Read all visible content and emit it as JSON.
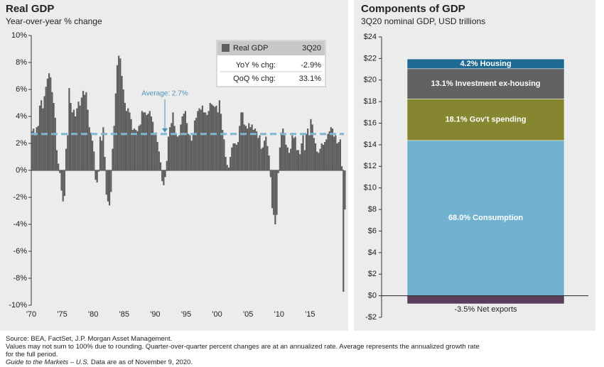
{
  "chart_data": [
    {
      "type": "bar",
      "title": "Real GDP",
      "subtitle": "Year-over-year % change",
      "categories": [
        "'70",
        null,
        null,
        null,
        null,
        null,
        null,
        null,
        null,
        null,
        null,
        null,
        null,
        null,
        null,
        null,
        null,
        null,
        null,
        null,
        "'75",
        null,
        null,
        null,
        null,
        null,
        null,
        null,
        null,
        null,
        null,
        null,
        null,
        null,
        null,
        null,
        null,
        null,
        null,
        null,
        "'80",
        null,
        null,
        null,
        null,
        null,
        null,
        null,
        null,
        null,
        null,
        null,
        null,
        null,
        null,
        null,
        null,
        null,
        null,
        null,
        "'85",
        null,
        null,
        null,
        null,
        null,
        null,
        null,
        null,
        null,
        null,
        null,
        null,
        null,
        null,
        null,
        null,
        null,
        null,
        null,
        "'90",
        null,
        null,
        null,
        null,
        null,
        null,
        null,
        null,
        null,
        null,
        null,
        null,
        null,
        null,
        null,
        null,
        null,
        null,
        null,
        "'95",
        null,
        null,
        null,
        null,
        null,
        null,
        null,
        null,
        null,
        null,
        null,
        null,
        null,
        null,
        null,
        null,
        null,
        null,
        null,
        "'00",
        null,
        null,
        null,
        null,
        null,
        null,
        null,
        null,
        null,
        null,
        null,
        null,
        null,
        null,
        null,
        null,
        null,
        null,
        null,
        "'05",
        null,
        null,
        null,
        null,
        null,
        null,
        null,
        null,
        null,
        null,
        null,
        null,
        null,
        null,
        null,
        null,
        null,
        null,
        null,
        "'10",
        null,
        null,
        null,
        null,
        null,
        null,
        null,
        null,
        null,
        null,
        null,
        null,
        null,
        null,
        null,
        null,
        null,
        null,
        null,
        "'15",
        null,
        null,
        null,
        null,
        null,
        null,
        null,
        null,
        null,
        null,
        null,
        null,
        null,
        null,
        null,
        null,
        null,
        null,
        null,
        null,
        null,
        null
      ],
      "series": [
        {
          "name": "Real GDP",
          "color": "#5e5e5e",
          "values": [
            2.9,
            3.1,
            2.6,
            3.2,
            3.3,
            4.8,
            5.2,
            4.6,
            5.5,
            6.2,
            6.8,
            7.2,
            6.9,
            5.8,
            5.0,
            3.9,
            1.5,
            0.5,
            -0.2,
            -1.5,
            -2.3,
            -1.9,
            1.6,
            2.6,
            6.1,
            5.0,
            4.3,
            4.5,
            4.0,
            4.6,
            5.1,
            4.8,
            5.4,
            5.9,
            5.6,
            5.8,
            4.5,
            3.2,
            2.8,
            2.2,
            1.4,
            -0.7,
            -0.9,
            -0.1,
            2.5,
            2.2,
            3.2,
            1.0,
            -1.8,
            -2.3,
            -2.6,
            -1.6,
            1.6,
            3.3,
            5.7,
            7.8,
            8.5,
            8.3,
            7.0,
            6.0,
            5.0,
            4.4,
            4.6,
            4.3,
            3.8,
            3.0,
            3.1,
            3.0,
            2.9,
            3.3,
            3.4,
            4.4,
            4.3,
            4.3,
            4.1,
            4.2,
            4.4,
            4.0,
            3.6,
            2.7,
            2.8,
            2.1,
            1.4,
            0.6,
            -0.8,
            -1.1,
            -0.5,
            0.7,
            2.5,
            3.2,
            3.5,
            4.3,
            3.3,
            2.7,
            2.5,
            2.6,
            3.4,
            4.0,
            4.2,
            4.4,
            3.5,
            2.7,
            2.6,
            2.2,
            2.7,
            3.7,
            3.9,
            4.4,
            4.6,
            4.5,
            4.8,
            4.3,
            4.3,
            4.1,
            4.4,
            5.0,
            4.9,
            4.8,
            4.7,
            4.8,
            4.3,
            5.2,
            4.2,
            3.0,
            2.3,
            1.0,
            0.4,
            0.2,
            1.0,
            1.7,
            2.0,
            2.0,
            1.9,
            2.1,
            3.3,
            4.3,
            4.3,
            3.4,
            3.3,
            3.1,
            3.5,
            3.2,
            3.4,
            3.0,
            3.1,
            2.9,
            2.4,
            2.6,
            1.6,
            1.7,
            2.2,
            2.5,
            1.8,
            1.1,
            -0.5,
            -2.8,
            -3.3,
            -4.0,
            -3.3,
            -0.2,
            1.7,
            2.8,
            3.1,
            2.6,
            1.9,
            1.7,
            1.3,
            1.6,
            2.6,
            2.4,
            2.5,
            1.5,
            1.5,
            1.2,
            2.0,
            2.6,
            1.5,
            2.7,
            3.1,
            2.6,
            3.8,
            3.4,
            2.4,
            2.0,
            1.4,
            1.3,
            1.6,
            2.0,
            1.9,
            2.1,
            2.3,
            2.7,
            2.9,
            3.2,
            3.1,
            2.5,
            2.6,
            2.0,
            2.1,
            2.3,
            0.3,
            -9.0,
            -2.9
          ]
        }
      ],
      "ylim": [
        -10,
        10
      ],
      "yticks": [
        {
          "value": -10,
          "label": "-10%"
        },
        {
          "value": -8,
          "label": "-8%"
        },
        {
          "value": -6,
          "label": "-6%"
        },
        {
          "value": -4,
          "label": "-4%"
        },
        {
          "value": -2,
          "label": "-2%"
        },
        {
          "value": 0,
          "label": "0%"
        },
        {
          "value": 2,
          "label": "2%"
        },
        {
          "value": 4,
          "label": "4%"
        },
        {
          "value": 6,
          "label": "6%"
        },
        {
          "value": 8,
          "label": "8%"
        },
        {
          "value": 10,
          "label": "10%"
        }
      ],
      "average": 2.7,
      "average_label": "Average: 2.7%",
      "average_color": "#7fb6d6",
      "legend_period": "3Q20",
      "legend_rows": [
        [
          "YoY % chg:",
          "-2.9%"
        ],
        [
          "QoQ % chg:",
          "33.1%"
        ]
      ]
    },
    {
      "type": "stacked_bar",
      "title": "Components of GDP",
      "subtitle": "3Q20 nominal GDP, USD trillions",
      "series": [
        {
          "name": "68.0% Consumption",
          "color": "#70b2cf",
          "values": [
            14.4
          ]
        },
        {
          "name": "18.1% Gov't spending",
          "color": "#868631",
          "values": [
            3.85
          ]
        },
        {
          "name": "13.1% Investment ex-housing",
          "color": "#626262",
          "values": [
            2.8
          ]
        },
        {
          "name": "4.2% Housing",
          "color": "#1f6a92",
          "values": [
            0.9
          ]
        },
        {
          "name": "-3.5% Net exports",
          "color": "#5a3e5c",
          "values": [
            -0.75
          ]
        }
      ],
      "ylim": [
        -2,
        24
      ],
      "yticks": [
        {
          "value": -2,
          "label": "-$2"
        },
        {
          "value": 0,
          "label": "$0"
        },
        {
          "value": 2,
          "label": "$2"
        },
        {
          "value": 4,
          "label": "$4"
        },
        {
          "value": 6,
          "label": "$6"
        },
        {
          "value": 8,
          "label": "$8"
        },
        {
          "value": 10,
          "label": "$10"
        },
        {
          "value": 12,
          "label": "$12"
        },
        {
          "value": 14,
          "label": "$14"
        },
        {
          "value": 16,
          "label": "$16"
        },
        {
          "value": 18,
          "label": "$18"
        },
        {
          "value": 20,
          "label": "$20"
        },
        {
          "value": 22,
          "label": "$22"
        },
        {
          "value": 24,
          "label": "$24"
        }
      ]
    }
  ],
  "footer": {
    "source": "Source: BEA, FactSet, J.P. Morgan Asset Management.",
    "note": "Values may not sum to 100% due to rounding. Quarter-over-quarter percent changes are at an annualized rate. Average represents the annualized growth rate for the full period.",
    "guide": "Guide to the Markets – U.S.",
    "date": "Data are as of November 9, 2020."
  }
}
